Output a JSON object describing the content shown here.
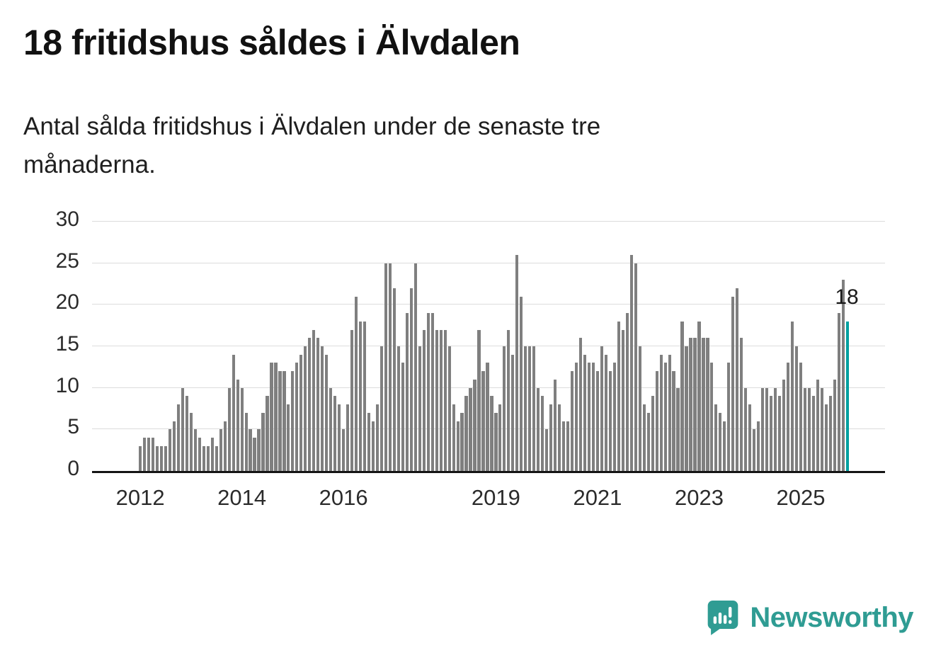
{
  "title": "18 fritidshus såldes i Älvdalen",
  "subtitle": "Antal sålda fritidshus i Älvdalen under de senaste tre månaderna.",
  "chart_data": {
    "type": "bar",
    "title": "18 fritidshus såldes i Älvdalen",
    "xlabel": "",
    "ylabel": "",
    "ylim": [
      0,
      30
    ],
    "yticks": [
      0,
      5,
      10,
      15,
      20,
      25,
      30
    ],
    "grid": true,
    "legend": "none",
    "x_tick_labels": [
      {
        "label": "2012",
        "index": 0
      },
      {
        "label": "2014",
        "index": 24
      },
      {
        "label": "2016",
        "index": 48
      },
      {
        "label": "2019",
        "index": 84
      },
      {
        "label": "2021",
        "index": 108
      },
      {
        "label": "2023",
        "index": 132
      },
      {
        "label": "2025",
        "index": 156
      }
    ],
    "values": [
      3,
      4,
      4,
      4,
      3,
      3,
      3,
      5,
      6,
      8,
      10,
      9,
      7,
      5,
      4,
      3,
      3,
      4,
      3,
      5,
      6,
      10,
      14,
      11,
      10,
      7,
      5,
      4,
      5,
      7,
      9,
      13,
      13,
      12,
      12,
      8,
      12,
      13,
      14,
      15,
      16,
      17,
      16,
      15,
      14,
      10,
      9,
      8,
      5,
      8,
      17,
      21,
      18,
      18,
      7,
      6,
      8,
      15,
      25,
      25,
      22,
      15,
      13,
      19,
      22,
      25,
      15,
      17,
      19,
      19,
      17,
      17,
      17,
      15,
      8,
      6,
      7,
      9,
      10,
      11,
      17,
      12,
      13,
      9,
      7,
      8,
      15,
      17,
      14,
      26,
      21,
      15,
      15,
      15,
      10,
      9,
      5,
      8,
      11,
      8,
      6,
      6,
      12,
      13,
      16,
      14,
      13,
      13,
      12,
      15,
      14,
      12,
      13,
      18,
      17,
      19,
      26,
      25,
      15,
      8,
      7,
      9,
      12,
      14,
      13,
      14,
      12,
      10,
      18,
      15,
      16,
      16,
      18,
      16,
      16,
      13,
      8,
      7,
      6,
      13,
      21,
      22,
      16,
      10,
      8,
      5,
      6,
      10,
      10,
      9,
      10,
      9,
      11,
      13,
      18,
      15,
      13,
      10,
      10,
      9,
      11,
      10,
      8,
      9,
      11,
      19,
      23,
      18
    ],
    "highlight_last": true,
    "highlight_value": 18,
    "annotation": {
      "text": "18"
    },
    "bar_color": "#7f7f7f",
    "highlight_color": "#00a0a0"
  },
  "footer": {
    "brand": "Newsworthy",
    "brand_color": "#2f9c93"
  }
}
